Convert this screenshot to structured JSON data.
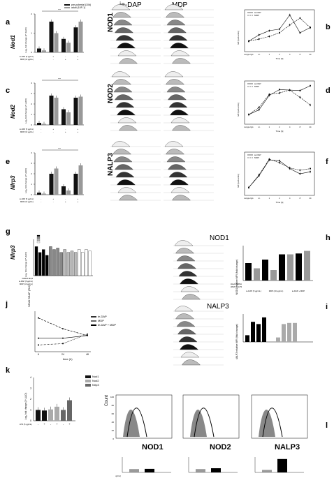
{
  "panels": {
    "a": "a",
    "b": "b",
    "c": "c",
    "d": "d",
    "e": "e",
    "f": "f",
    "g": "g",
    "h": "h",
    "i": "i",
    "j": "j",
    "k": "k",
    "l": "l"
  },
  "headers": {
    "iedap": "ie-DAP",
    "mdp": "MDP",
    "nod1_top": "NOD1",
    "nalp3_top": "NALP3"
  },
  "gene_labels": {
    "nod1": "NOD1",
    "nod2": "NOD2",
    "nalp3": "NALP3"
  },
  "y_titles": {
    "a": "Nod1",
    "c": "Nod2",
    "e": "Nlrp3",
    "g": "Nlrp3",
    "k": ""
  },
  "bar_axis_label": "Log₂ fold change (2^-ΔΔCt)",
  "legend_a": [
    "pre-pubertal (10d)",
    "adult (10P-1)"
  ],
  "legend_j": [
    "ie-DAP",
    "MDP",
    "ie-DAP + MDP"
  ],
  "legend_k": [
    "Nod1",
    "Nod2",
    "Nrlp3"
  ],
  "legend_bd": [
    "ie-DAP",
    "MDP"
  ],
  "j_axes": {
    "ylabel": "NFκB SEAP (RU)",
    "xlabel": "time (h)",
    "xticks": [
      "6",
      "24",
      "48"
    ]
  },
  "bd_axes": {
    "ylabel": "MFI [arb.units]",
    "xlabel": "Time [h]",
    "xticks": [
      "isotype\nIgG",
      "n.t.",
      "1",
      "2",
      "4",
      "8",
      "24"
    ]
  },
  "h_axis": {
    "ylabel": "NOD1\nrelative MFI (fold change)"
  },
  "i_axis": {
    "ylabel": "NALP3\nrelative MFI (fold change)"
  },
  "bottom_hist": {
    "count": "Count",
    "yticks": [
      "100",
      "80",
      "60",
      "40",
      "20",
      "0"
    ]
  },
  "bottom_bar_label": "relative MFI (fold change)",
  "row_labels": {
    "a": [
      "ie-DAP (5 μg/mL)",
      "MDP (10 μg/mL)"
    ],
    "g": [
      "DsRNA Nlrp3",
      "ie-DAP (5 μg/mL)",
      "MDP (10 μg/mL)"
    ],
    "h": [
      "scrambled DsRNA",
      "DsRNA NALP3"
    ],
    "h_groups": [
      "ie-DAP (5 μg/mL)",
      "MDP (10 μg/mL)",
      "ie-DAP + MDP"
    ],
    "k": [
      "LPS (5 μg/mL)"
    ],
    "l": [
      "LPS (5 μg/mL)"
    ]
  },
  "chart_data": [
    {
      "type": "bar",
      "panel": "a",
      "categories": [
        "ctrl",
        "ie-DAP",
        "MDP",
        "ie-DAP+MDP"
      ],
      "series": [
        {
          "name": "pre-pubertal (10d)",
          "values": [
            0.2,
            1.6,
            0.7,
            1.3
          ]
        },
        {
          "name": "adult (10P-1)",
          "values": [
            0.1,
            1.0,
            0.5,
            1.6
          ]
        }
      ],
      "ylim": [
        0,
        2
      ]
    },
    {
      "type": "line",
      "panel": "b",
      "x": [
        "isotype IgG",
        "n.t.",
        "1",
        "2",
        "4",
        "8",
        "24"
      ],
      "series": [
        {
          "name": "ie-DAP",
          "values": [
            2.0,
            3.2,
            4.0,
            4.3,
            7.0,
            3.6,
            4.6
          ]
        },
        {
          "name": "MDP",
          "values": [
            2.0,
            2.4,
            2.9,
            3.6,
            5.1,
            6.4,
            4.6
          ]
        }
      ]
    },
    {
      "type": "bar",
      "panel": "c",
      "categories": [
        "ctrl",
        "ie-DAP",
        "MDP",
        "ie-DAP+MDP"
      ],
      "series": [
        {
          "values": [
            0.2,
            2.8,
            1.5,
            2.6
          ]
        },
        {
          "values": [
            0.1,
            2.6,
            1.2,
            2.7
          ]
        }
      ],
      "ylim": [
        0,
        4
      ]
    },
    {
      "type": "line",
      "panel": "d",
      "x": [
        "isotype IgG",
        "n.t.",
        "1",
        "2",
        "4",
        "8",
        "24"
      ],
      "series": [
        {
          "name": "ie-DAP",
          "values": [
            2,
            3,
            6,
            7.2,
            7.1,
            7.0,
            8.0
          ]
        },
        {
          "name": "MDP",
          "values": [
            2,
            3.5,
            6.2,
            6.5,
            7.1,
            5.6,
            4.0
          ]
        }
      ]
    },
    {
      "type": "bar",
      "panel": "e",
      "categories": [
        "ctrl",
        "ie-DAP",
        "MDP",
        "ie-DAP+MDP"
      ],
      "series": [
        {
          "values": [
            0.2,
            2.0,
            0.8,
            2.0
          ]
        },
        {
          "values": [
            0.1,
            2.5,
            0.4,
            2.8
          ]
        }
      ],
      "ylim": [
        0,
        4
      ]
    },
    {
      "type": "line",
      "panel": "f",
      "x": [
        "isotype IgG",
        "n.t.",
        "1",
        "2",
        "4",
        "8",
        "24"
      ],
      "series": [
        {
          "name": "ie-DAP",
          "values": [
            2,
            5,
            9,
            8.8,
            6.8,
            5.5,
            6.0
          ]
        },
        {
          "name": "MDP",
          "values": [
            2,
            5.2,
            9.2,
            8.3,
            7.0,
            6.4,
            6.8
          ]
        }
      ]
    },
    {
      "type": "line",
      "panel": "j",
      "x": [
        "6",
        "24",
        "48"
      ],
      "series": [
        {
          "name": "ie-DAP",
          "values": [
            1.0,
            1.0,
            1.2
          ]
        },
        {
          "name": "MDP",
          "values": [
            0.5,
            0.6,
            1.3
          ]
        },
        {
          "name": "ie-DAP + MDP",
          "values": [
            2.5,
            1.7,
            1.2
          ]
        }
      ]
    },
    {
      "type": "bar",
      "panel": "k",
      "categories": [
        "-",
        "+",
        "-",
        "+",
        "-",
        "+"
      ],
      "values": [
        1.0,
        0.95,
        1.05,
        1.3,
        1.0,
        1.9
      ],
      "ylim": [
        0,
        4
      ]
    }
  ]
}
